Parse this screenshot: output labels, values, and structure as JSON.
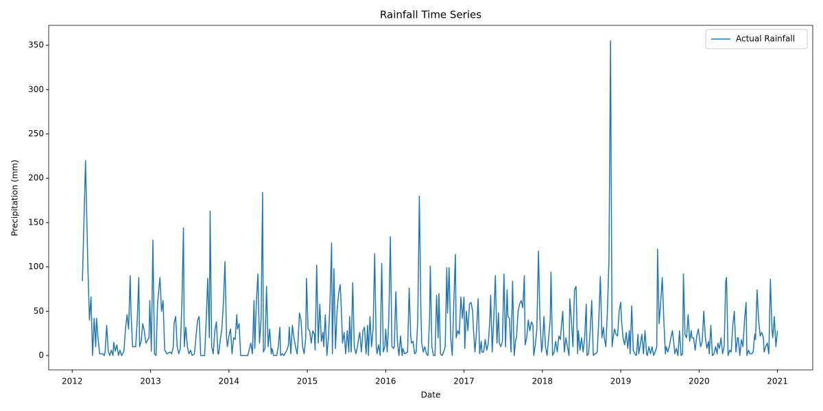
{
  "chart_data": {
    "type": "line",
    "title": "Rainfall Time Series",
    "x_label": "Date",
    "y_label": "Precipitation (mm)",
    "x": [
      2012.13,
      2012.17,
      2012.2,
      2012.22,
      2012.24,
      2012.26,
      2012.28,
      2012.3,
      2012.31,
      2012.33,
      2012.35,
      2012.39,
      2012.41,
      2012.42,
      2012.44,
      2012.46,
      2012.48,
      2012.5,
      2012.52,
      2012.53,
      2012.55,
      2012.57,
      2012.59,
      2012.61,
      2012.63,
      2012.66,
      2012.68,
      2012.7,
      2012.72,
      2012.74,
      2012.75,
      2012.77,
      2012.81,
      2012.83,
      2012.85,
      2012.86,
      2012.88,
      2012.9,
      2012.92,
      2012.94,
      2012.98,
      2012.99,
      2013.01,
      2013.03,
      2013.05,
      2013.07,
      2013.09,
      2013.12,
      2013.14,
      2013.16,
      2013.18,
      2013.21,
      2013.25,
      2013.27,
      2013.29,
      2013.3,
      2013.32,
      2013.34,
      2013.36,
      2013.38,
      2013.4,
      2013.42,
      2013.43,
      2013.45,
      2013.47,
      2013.49,
      2013.51,
      2013.53,
      2013.56,
      2013.6,
      2013.62,
      2013.64,
      2013.69,
      2013.71,
      2013.73,
      2013.75,
      2013.76,
      2013.78,
      2013.8,
      2013.82,
      2013.84,
      2013.86,
      2013.87,
      2013.89,
      2013.91,
      2013.93,
      2013.95,
      2013.97,
      2013.98,
      2014.0,
      2014.02,
      2014.04,
      2014.06,
      2014.08,
      2014.1,
      2014.11,
      2014.13,
      2014.15,
      2014.24,
      2014.28,
      2014.3,
      2014.32,
      2014.33,
      2014.35,
      2014.37,
      2014.39,
      2014.41,
      2014.43,
      2014.44,
      2014.46,
      2014.48,
      2014.5,
      2014.52,
      2014.54,
      2014.55,
      2014.57,
      2014.61,
      2014.63,
      2014.65,
      2014.66,
      2014.68,
      2014.7,
      2014.74,
      2014.76,
      2014.77,
      2014.79,
      2014.81,
      2014.83,
      2014.85,
      2014.87,
      2014.88,
      2014.9,
      2014.92,
      2014.94,
      2014.96,
      2014.98,
      2014.99,
      2015.01,
      2015.03,
      2015.05,
      2015.07,
      2015.09,
      2015.1,
      2015.12,
      2015.14,
      2015.16,
      2015.18,
      2015.2,
      2015.21,
      2015.23,
      2015.25,
      2015.27,
      2015.29,
      2015.31,
      2015.32,
      2015.34,
      2015.36,
      2015.38,
      2015.4,
      2015.42,
      2015.43,
      2015.45,
      2015.47,
      2015.49,
      2015.51,
      2015.53,
      2015.54,
      2015.56,
      2015.58,
      2015.6,
      2015.62,
      2015.64,
      2015.66,
      2015.67,
      2015.69,
      2015.71,
      2015.73,
      2015.75,
      2015.77,
      2015.78,
      2015.8,
      2015.82,
      2015.84,
      2015.86,
      2015.88,
      2015.89,
      2015.91,
      2015.93,
      2015.95,
      2015.97,
      2015.99,
      2016.0,
      2016.02,
      2016.04,
      2016.06,
      2016.08,
      2016.1,
      2016.11,
      2016.13,
      2016.15,
      2016.17,
      2016.19,
      2016.21,
      2016.22,
      2016.24,
      2016.28,
      2016.3,
      2016.32,
      2016.33,
      2016.35,
      2016.37,
      2016.39,
      2016.41,
      2016.43,
      2016.45,
      2016.46,
      2016.48,
      2016.5,
      2016.52,
      2016.54,
      2016.56,
      2016.57,
      2016.59,
      2016.61,
      2016.63,
      2016.65,
      2016.67,
      2016.68,
      2016.7,
      2016.72,
      2016.74,
      2016.76,
      2016.78,
      2016.79,
      2016.81,
      2016.83,
      2016.85,
      2016.87,
      2016.89,
      2016.9,
      2016.92,
      2016.94,
      2016.96,
      2016.98,
      2017.0,
      2017.01,
      2017.03,
      2017.05,
      2017.07,
      2017.09,
      2017.11,
      2017.12,
      2017.14,
      2017.16,
      2017.18,
      2017.2,
      2017.22,
      2017.23,
      2017.25,
      2017.27,
      2017.29,
      2017.31,
      2017.33,
      2017.34,
      2017.36,
      2017.38,
      2017.4,
      2017.42,
      2017.44,
      2017.45,
      2017.47,
      2017.49,
      2017.51,
      2017.53,
      2017.55,
      2017.56,
      2017.58,
      2017.6,
      2017.62,
      2017.64,
      2017.66,
      2017.67,
      2017.69,
      2017.71,
      2017.73,
      2017.75,
      2017.77,
      2017.78,
      2017.8,
      2017.82,
      2017.84,
      2017.86,
      2017.88,
      2017.89,
      2017.91,
      2017.93,
      2017.95,
      2017.97,
      2017.99,
      2018.0,
      2018.02,
      2018.04,
      2018.06,
      2018.08,
      2018.1,
      2018.11,
      2018.13,
      2018.15,
      2018.17,
      2018.19,
      2018.21,
      2018.23,
      2018.24,
      2018.26,
      2018.28,
      2018.3,
      2018.32,
      2018.34,
      2018.35,
      2018.37,
      2018.39,
      2018.41,
      2018.43,
      2018.45,
      2018.46,
      2018.48,
      2018.5,
      2018.52,
      2018.54,
      2018.56,
      2018.57,
      2018.59,
      2018.61,
      2018.63,
      2018.65,
      2018.67,
      2018.68,
      2018.7,
      2018.72,
      2018.74,
      2018.76,
      2018.78,
      2018.79,
      2018.81,
      2018.83,
      2018.85,
      2018.87,
      2018.89,
      2018.9,
      2018.92,
      2018.94,
      2018.96,
      2018.98,
      2019.0,
      2019.01,
      2019.03,
      2019.05,
      2019.07,
      2019.09,
      2019.11,
      2019.12,
      2019.14,
      2019.16,
      2019.18,
      2019.2,
      2019.22,
      2019.23,
      2019.25,
      2019.27,
      2019.29,
      2019.31,
      2019.33,
      2019.34,
      2019.36,
      2019.38,
      2019.4,
      2019.42,
      2019.44,
      2019.46,
      2019.47,
      2019.49,
      2019.51,
      2019.53,
      2019.55,
      2019.57,
      2019.58,
      2019.6,
      2019.62,
      2019.64,
      2019.66,
      2019.68,
      2019.69,
      2019.71,
      2019.73,
      2019.75,
      2019.77,
      2019.79,
      2019.8,
      2019.82,
      2019.84,
      2019.86,
      2019.88,
      2019.9,
      2019.91,
      2019.93,
      2019.95,
      2019.97,
      2019.99,
      2020.01,
      2020.02,
      2020.04,
      2020.06,
      2020.08,
      2020.1,
      2020.12,
      2020.13,
      2020.15,
      2020.17,
      2020.19,
      2020.21,
      2020.23,
      2020.24,
      2020.26,
      2020.28,
      2020.3,
      2020.32,
      2020.34,
      2020.35,
      2020.37,
      2020.39,
      2020.41,
      2020.43,
      2020.45,
      2020.47,
      2020.49,
      2020.5,
      2020.52,
      2020.54,
      2020.56,
      2020.58,
      2020.6,
      2020.61,
      2020.63,
      2020.65,
      2020.67,
      2020.69,
      2020.71,
      2020.72,
      2020.74,
      2020.76,
      2020.78,
      2020.8,
      2020.82,
      2020.83,
      2020.85,
      2020.87,
      2020.89,
      2020.91,
      2020.93,
      2020.94,
      2020.96,
      2020.98,
      2021.0
    ],
    "series": [
      {
        "name": "Actual Rainfall",
        "color": "#1f77b4",
        "values": [
          84,
          220,
          100,
          40,
          66,
          0,
          42,
          10,
          42,
          20,
          2,
          2,
          0,
          4,
          34,
          5,
          0,
          6,
          0,
          15,
          5,
          12,
          0,
          6,
          0,
          5,
          30,
          46,
          30,
          90,
          50,
          10,
          10,
          40,
          88,
          10,
          16,
          36,
          28,
          14,
          20,
          62,
          5,
          130,
          2,
          0,
          60,
          88,
          50,
          62,
          6,
          2,
          4,
          2,
          10,
          36,
          44,
          10,
          2,
          8,
          60,
          144,
          10,
          32,
          10,
          2,
          6,
          0,
          2,
          40,
          44,
          0,
          0,
          40,
          87,
          20,
          163,
          10,
          2,
          28,
          38,
          2,
          2,
          18,
          30,
          60,
          106,
          20,
          10,
          22,
          30,
          2,
          20,
          18,
          46,
          30,
          36,
          0,
          0,
          14,
          2,
          62,
          8,
          60,
          92,
          14,
          40,
          184,
          4,
          8,
          78,
          10,
          30,
          2,
          8,
          0,
          0,
          10,
          32,
          0,
          2,
          0,
          6,
          12,
          32,
          2,
          34,
          20,
          10,
          2,
          12,
          48,
          40,
          10,
          2,
          20,
          87,
          30,
          28,
          14,
          28,
          24,
          6,
          102,
          14,
          58,
          16,
          26,
          10,
          46,
          0,
          20,
          60,
          127,
          2,
          98,
          8,
          50,
          70,
          80,
          62,
          14,
          26,
          2,
          28,
          4,
          44,
          4,
          82,
          10,
          2,
          10,
          22,
          26,
          4,
          28,
          32,
          2,
          34,
          0,
          44,
          10,
          30,
          115,
          10,
          2,
          12,
          0,
          104,
          4,
          10,
          30,
          4,
          40,
          134,
          10,
          8,
          10,
          72,
          16,
          0,
          22,
          0,
          8,
          2,
          4,
          76,
          22,
          14,
          16,
          2,
          4,
          40,
          180,
          50,
          14,
          4,
          10,
          2,
          0,
          40,
          101,
          10,
          0,
          0,
          68,
          20,
          70,
          2,
          0,
          4,
          10,
          99,
          48,
          99,
          20,
          0,
          60,
          114,
          20,
          28,
          24,
          66,
          42,
          66,
          8,
          50,
          28,
          58,
          60,
          50,
          30,
          4,
          28,
          64,
          2,
          16,
          4,
          4,
          18,
          6,
          14,
          40,
          68,
          4,
          42,
          90,
          14,
          48,
          14,
          10,
          16,
          92,
          10,
          74,
          44,
          42,
          4,
          84,
          0,
          18,
          20,
          50,
          58,
          62,
          54,
          90,
          12,
          20,
          40,
          28,
          38,
          34,
          0,
          12,
          30,
          118,
          40,
          4,
          10,
          44,
          10,
          0,
          20,
          40,
          94,
          0,
          4,
          16,
          4,
          22,
          18,
          30,
          50,
          4,
          20,
          10,
          0,
          64,
          40,
          10,
          74,
          78,
          2,
          28,
          6,
          20,
          4,
          20,
          58,
          0,
          2,
          28,
          62,
          0,
          2,
          2,
          4,
          40,
          89,
          20,
          32,
          20,
          10,
          50,
          108,
          355,
          10,
          18,
          30,
          24,
          22,
          50,
          60,
          40,
          20,
          12,
          26,
          8,
          28,
          2,
          56,
          6,
          2,
          0,
          24,
          2,
          12,
          24,
          2,
          28,
          2,
          0,
          10,
          2,
          10,
          0,
          4,
          10,
          120,
          36,
          60,
          88,
          40,
          2,
          10,
          4,
          10,
          20,
          28,
          12,
          2,
          8,
          0,
          28,
          0,
          2,
          92,
          24,
          20,
          46,
          16,
          28,
          20,
          20,
          6,
          22,
          30,
          16,
          10,
          16,
          50,
          20,
          8,
          16,
          2,
          34,
          0,
          2,
          10,
          2,
          14,
          8,
          20,
          2,
          10,
          84,
          88,
          0,
          6,
          4,
          34,
          50,
          4,
          20,
          20,
          0,
          18,
          10,
          40,
          60,
          0,
          6,
          2,
          2,
          4,
          24,
          18,
          74,
          40,
          22,
          26,
          20,
          4,
          10,
          14,
          2,
          86,
          30,
          20,
          44,
          10,
          28
        ]
      }
    ],
    "xlim": [
      2011.7,
      2021.45
    ],
    "xticks": [
      2012,
      2013,
      2014,
      2015,
      2016,
      2017,
      2018,
      2019,
      2020,
      2021
    ],
    "ylim": [
      -16.2,
      372.5
    ],
    "yticks": [
      0,
      50,
      100,
      150,
      200,
      250,
      300,
      350
    ],
    "legend": "upper right",
    "grid": false
  }
}
